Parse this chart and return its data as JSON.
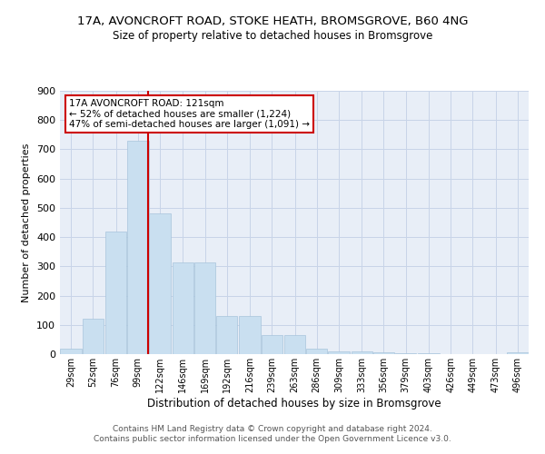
{
  "title_line1": "17A, AVONCROFT ROAD, STOKE HEATH, BROMSGROVE, B60 4NG",
  "title_line2": "Size of property relative to detached houses in Bromsgrove",
  "xlabel": "Distribution of detached houses by size in Bromsgrove",
  "ylabel": "Number of detached properties",
  "bar_color": "#c9dff0",
  "bar_edge_color": "#a8c4dc",
  "grid_color": "#c8d4e8",
  "bg_color": "#e8eef7",
  "vline_color": "#cc0000",
  "vline_x": 121,
  "categories": [
    "29sqm",
    "52sqm",
    "76sqm",
    "99sqm",
    "122sqm",
    "146sqm",
    "169sqm",
    "192sqm",
    "216sqm",
    "239sqm",
    "263sqm",
    "286sqm",
    "309sqm",
    "333sqm",
    "356sqm",
    "379sqm",
    "403sqm",
    "426sqm",
    "449sqm",
    "473sqm",
    "496sqm"
  ],
  "bin_edges": [
    29,
    52,
    76,
    99,
    122,
    146,
    169,
    192,
    216,
    239,
    263,
    286,
    309,
    333,
    356,
    379,
    403,
    426,
    449,
    473,
    496
  ],
  "bin_width": 23,
  "values": [
    18,
    120,
    418,
    730,
    480,
    315,
    315,
    130,
    130,
    65,
    65,
    20,
    10,
    8,
    5,
    3,
    2,
    1,
    1,
    0,
    7
  ],
  "ylim": [
    0,
    900
  ],
  "yticks": [
    0,
    100,
    200,
    300,
    400,
    500,
    600,
    700,
    800,
    900
  ],
  "annotation_text": "17A AVONCROFT ROAD: 121sqm\n← 52% of detached houses are smaller (1,224)\n47% of semi-detached houses are larger (1,091) →",
  "annotation_box_color": "#ffffff",
  "annotation_box_edge": "#cc0000",
  "footer_line1": "Contains HM Land Registry data © Crown copyright and database right 2024.",
  "footer_line2": "Contains public sector information licensed under the Open Government Licence v3.0."
}
